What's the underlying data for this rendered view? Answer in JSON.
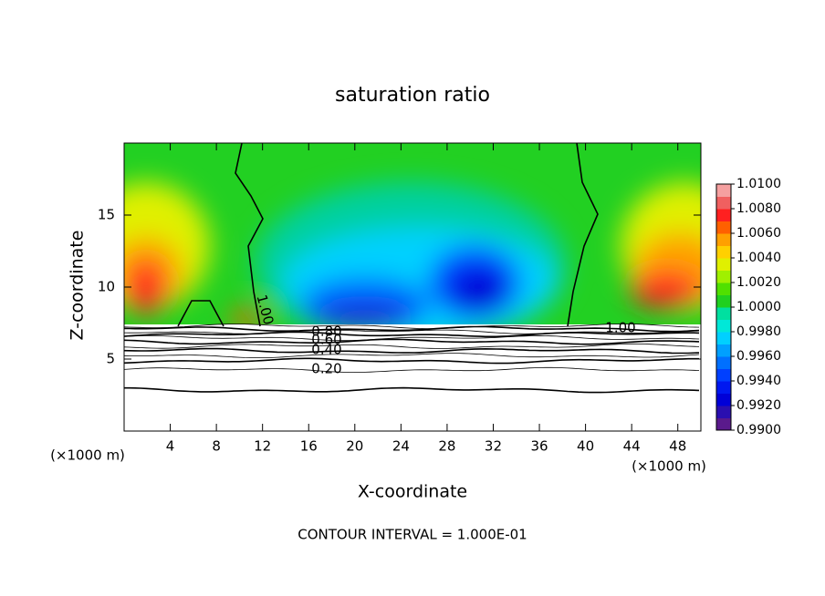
{
  "chart_data": {
    "type": "contour",
    "title": "saturation ratio",
    "x_label": "X-coordinate",
    "y_label": "Z-coordinate",
    "x_unit": "(×1000 m)",
    "y_unit": "(×1000 m)",
    "xlim": [
      0,
      50
    ],
    "ylim": [
      0,
      20
    ],
    "xticks": [
      4,
      8,
      12,
      16,
      20,
      24,
      28,
      32,
      36,
      40,
      44,
      48
    ],
    "yticks": [
      5,
      10,
      15
    ],
    "contour_labels": [
      "1.00",
      "1.00",
      "0.80",
      "0.60",
      "0.40",
      "0.20"
    ],
    "footer": "CONTOUR INTERVAL = 1.000E-01",
    "colorbar": {
      "ticks": [
        {
          "value": 0.99,
          "label": "0.9900"
        },
        {
          "value": 0.992,
          "label": "0.9920"
        },
        {
          "value": 0.994,
          "label": "0.9940"
        },
        {
          "value": 0.996,
          "label": "0.9960"
        },
        {
          "value": 0.998,
          "label": "0.9980"
        },
        {
          "value": 1.0,
          "label": "1.0000"
        },
        {
          "value": 1.002,
          "label": "1.0020"
        },
        {
          "value": 1.004,
          "label": "1.0040"
        },
        {
          "value": 1.006,
          "label": "1.0060"
        },
        {
          "value": 1.008,
          "label": "1.0080"
        },
        {
          "value": 1.01,
          "label": "1.0100"
        }
      ],
      "colors": [
        "#5a1a8c",
        "#2a0fb0",
        "#0000d8",
        "#0018f0",
        "#0040ff",
        "#0070ff",
        "#00a0ff",
        "#00d0ff",
        "#00e8d8",
        "#00e0a0",
        "#20d020",
        "#50e000",
        "#a0f000",
        "#e0f000",
        "#ffd000",
        "#ffa000",
        "#ff6000",
        "#ff2020",
        "#f06060",
        "#f5a0a0"
      ]
    }
  }
}
